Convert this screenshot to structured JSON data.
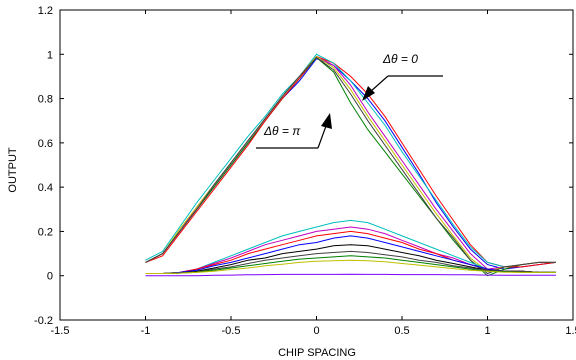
{
  "chart_data": {
    "type": "line",
    "xlabel": "CHIP SPACING",
    "ylabel": "OUTPUT",
    "xlim": [
      -1.5,
      1.5
    ],
    "ylim": [
      -0.2,
      1.2
    ],
    "xticks": [
      "-1.5",
      "-1",
      "-0.5",
      "0",
      "0.5",
      "1",
      "1.5"
    ],
    "yticks": [
      "-0.2",
      "0",
      "0.2",
      "0.4",
      "0.6",
      "0.8",
      "1",
      "1.2"
    ],
    "grid": false,
    "legend": "none",
    "annotations": [
      {
        "text": "Δθ = 0",
        "points_to": [
          0.28,
          0.78
        ]
      },
      {
        "text": "Δθ = π",
        "points_to": [
          0.1,
          0.72
        ]
      }
    ],
    "x": [
      -1.0,
      -0.9,
      -0.8,
      -0.7,
      -0.6,
      -0.5,
      -0.4,
      -0.3,
      -0.2,
      -0.1,
      0.0,
      0.1,
      0.2,
      0.3,
      0.4,
      0.5,
      0.6,
      0.7,
      0.8,
      0.9,
      1.0,
      1.1,
      1.2,
      1.3,
      1.4
    ],
    "series": [
      {
        "color": "#0000ff",
        "values": [
          0.06,
          0.1,
          0.2,
          0.3,
          0.4,
          0.5,
          0.6,
          0.7,
          0.8,
          0.88,
          0.98,
          0.95,
          0.88,
          0.8,
          0.7,
          0.58,
          0.46,
          0.33,
          0.22,
          0.12,
          0.05,
          0.03,
          0.04,
          0.05,
          0.06
        ]
      },
      {
        "color": "#008000",
        "values": [
          0.06,
          0.1,
          0.2,
          0.3,
          0.4,
          0.5,
          0.6,
          0.7,
          0.8,
          0.89,
          0.985,
          0.92,
          0.78,
          0.66,
          0.56,
          0.46,
          0.36,
          0.26,
          0.16,
          0.07,
          0.0,
          0.03,
          0.05,
          0.06,
          0.06
        ]
      },
      {
        "color": "#ff0000",
        "values": [
          0.06,
          0.09,
          0.19,
          0.29,
          0.39,
          0.49,
          0.59,
          0.7,
          0.8,
          0.89,
          0.99,
          0.96,
          0.9,
          0.82,
          0.72,
          0.6,
          0.48,
          0.36,
          0.25,
          0.14,
          0.06,
          0.04,
          0.04,
          0.05,
          0.06
        ]
      },
      {
        "color": "#00bfbf",
        "values": [
          0.07,
          0.11,
          0.22,
          0.33,
          0.43,
          0.53,
          0.63,
          0.72,
          0.82,
          0.9,
          1.0,
          0.96,
          0.88,
          0.78,
          0.68,
          0.56,
          0.45,
          0.34,
          0.23,
          0.13,
          0.06,
          0.04,
          0.05,
          0.06,
          0.06
        ]
      },
      {
        "color": "#bf00bf",
        "values": [
          0.06,
          0.1,
          0.2,
          0.31,
          0.41,
          0.51,
          0.61,
          0.71,
          0.81,
          0.9,
          0.99,
          0.95,
          0.86,
          0.74,
          0.63,
          0.52,
          0.41,
          0.3,
          0.2,
          0.1,
          0.03,
          0.04,
          0.05,
          0.06,
          0.06
        ]
      },
      {
        "color": "#bfbf00",
        "values": [
          0.06,
          0.1,
          0.21,
          0.31,
          0.41,
          0.51,
          0.61,
          0.71,
          0.81,
          0.9,
          0.99,
          0.94,
          0.84,
          0.72,
          0.61,
          0.5,
          0.39,
          0.28,
          0.18,
          0.08,
          0.02,
          0.04,
          0.05,
          0.06,
          0.06
        ]
      },
      {
        "color": "#404040",
        "values": [
          0.06,
          0.1,
          0.2,
          0.3,
          0.41,
          0.51,
          0.61,
          0.71,
          0.81,
          0.9,
          0.985,
          0.93,
          0.82,
          0.7,
          0.59,
          0.48,
          0.37,
          0.26,
          0.17,
          0.07,
          0.01,
          0.04,
          0.05,
          0.06,
          0.06
        ]
      },
      {
        "color": "#00bfbf",
        "values": [
          0.01,
          0.01,
          0.015,
          0.03,
          0.06,
          0.09,
          0.12,
          0.15,
          0.18,
          0.2,
          0.22,
          0.24,
          0.25,
          0.24,
          0.21,
          0.18,
          0.15,
          0.12,
          0.09,
          0.06,
          0.03,
          0.02,
          0.02,
          0.015,
          0.015
        ]
      },
      {
        "color": "#bf00bf",
        "values": [
          0.01,
          0.01,
          0.015,
          0.03,
          0.055,
          0.08,
          0.11,
          0.14,
          0.16,
          0.18,
          0.2,
          0.21,
          0.22,
          0.21,
          0.19,
          0.16,
          0.13,
          0.1,
          0.08,
          0.05,
          0.03,
          0.02,
          0.02,
          0.015,
          0.015
        ]
      },
      {
        "color": "#ff0000",
        "values": [
          0.01,
          0.01,
          0.015,
          0.03,
          0.05,
          0.07,
          0.1,
          0.12,
          0.14,
          0.16,
          0.18,
          0.19,
          0.2,
          0.19,
          0.17,
          0.15,
          0.12,
          0.1,
          0.07,
          0.05,
          0.03,
          0.02,
          0.02,
          0.015,
          0.015
        ]
      },
      {
        "color": "#0000ff",
        "values": [
          0.01,
          0.01,
          0.015,
          0.025,
          0.045,
          0.06,
          0.08,
          0.1,
          0.12,
          0.14,
          0.15,
          0.17,
          0.18,
          0.17,
          0.15,
          0.13,
          0.11,
          0.09,
          0.07,
          0.05,
          0.03,
          0.02,
          0.02,
          0.015,
          0.015
        ]
      },
      {
        "color": "#000000",
        "values": [
          0.01,
          0.01,
          0.012,
          0.02,
          0.035,
          0.05,
          0.07,
          0.08,
          0.1,
          0.11,
          0.12,
          0.135,
          0.14,
          0.135,
          0.12,
          0.105,
          0.09,
          0.07,
          0.055,
          0.04,
          0.025,
          0.02,
          0.02,
          0.015,
          0.015
        ]
      },
      {
        "color": "#404040",
        "values": [
          0.01,
          0.01,
          0.012,
          0.018,
          0.03,
          0.04,
          0.055,
          0.07,
          0.08,
          0.09,
          0.1,
          0.105,
          0.11,
          0.105,
          0.095,
          0.085,
          0.07,
          0.06,
          0.045,
          0.035,
          0.025,
          0.02,
          0.02,
          0.015,
          0.015
        ]
      },
      {
        "color": "#008000",
        "values": [
          0.01,
          0.01,
          0.012,
          0.016,
          0.025,
          0.035,
          0.045,
          0.055,
          0.065,
          0.075,
          0.08,
          0.085,
          0.09,
          0.085,
          0.08,
          0.07,
          0.06,
          0.05,
          0.04,
          0.03,
          0.02,
          0.018,
          0.015,
          0.015,
          0.015
        ]
      },
      {
        "color": "#bfbf00",
        "values": [
          0.01,
          0.01,
          0.012,
          0.015,
          0.02,
          0.028,
          0.035,
          0.045,
          0.052,
          0.06,
          0.065,
          0.068,
          0.07,
          0.068,
          0.063,
          0.055,
          0.048,
          0.04,
          0.032,
          0.025,
          0.02,
          0.016,
          0.015,
          0.015,
          0.015
        ]
      },
      {
        "color": "#7f00ff",
        "values": [
          0.0,
          0.0,
          0.0,
          0.0,
          0.002,
          0.003,
          0.004,
          0.005,
          0.006,
          0.006,
          0.006,
          0.006,
          0.007,
          0.006,
          0.006,
          0.005,
          0.005,
          0.005,
          0.004,
          0.004,
          0.003,
          0.002,
          0.002,
          0.002,
          0.002
        ]
      }
    ]
  }
}
